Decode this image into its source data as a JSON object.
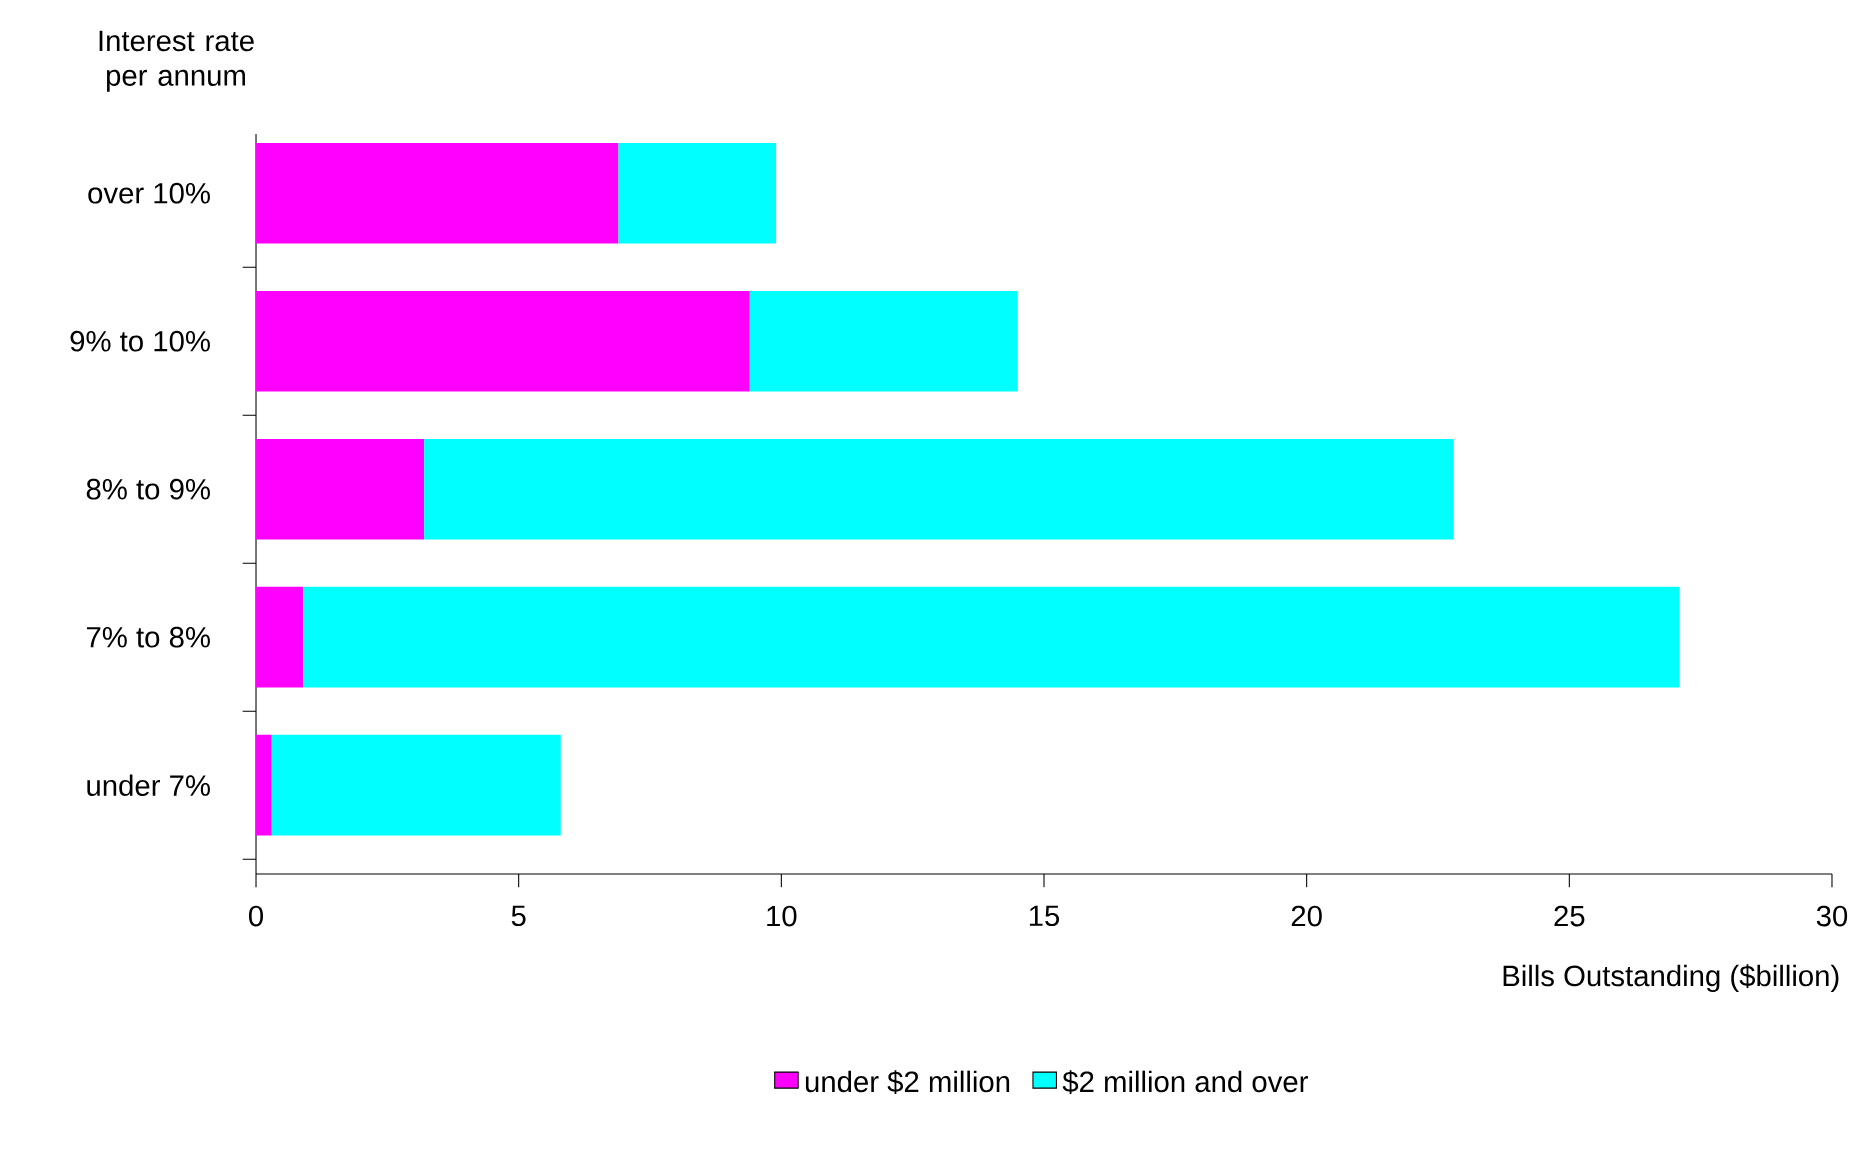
{
  "chart_data": {
    "type": "bar",
    "orientation": "horizontal",
    "stacked": true,
    "ylabel": "Interest rate per annum",
    "xlabel": "Bills Outstanding ($billion)",
    "categories": [
      "over 10%",
      "9% to 10%",
      "8% to 9%",
      "7% to 8%",
      "under 7%"
    ],
    "series": [
      {
        "name": "under $2 million",
        "color": "#ff00ff",
        "values": [
          6.9,
          9.4,
          3.2,
          0.9,
          0.3
        ]
      },
      {
        "name": "$2 million and over",
        "color": "#00ffff",
        "values": [
          3.0,
          5.1,
          19.6,
          26.2,
          5.5
        ]
      }
    ],
    "xlim": [
      0,
      30
    ],
    "xticks": [
      0,
      5,
      10,
      15,
      20,
      25,
      30
    ],
    "grid": false,
    "legend": "bottom"
  }
}
